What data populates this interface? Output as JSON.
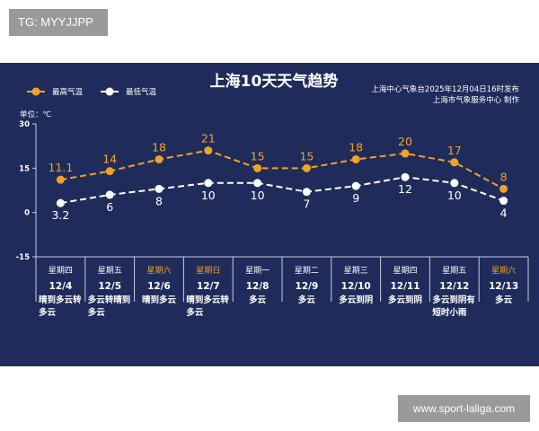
{
  "watermark_top": "TG: MYYJJPP",
  "watermark_bottom": "www.sport-laliga.com",
  "chart_data": {
    "type": "line",
    "title": "上海10天天气趋势",
    "subtitle_lines": [
      "上海中心气象台2025年12月04日16时发布",
      "上海市气象服务中心  制作"
    ],
    "unit_label": "单位：℃",
    "ylim": [
      -15,
      30
    ],
    "yticks": [
      30,
      15,
      0,
      -15
    ],
    "grid": false,
    "legend_placement": "top-left",
    "categories": [
      "12/4",
      "12/5",
      "12/6",
      "12/7",
      "12/8",
      "12/9",
      "12/10",
      "12/11",
      "12/12",
      "12/13"
    ],
    "weekdays": [
      "星期四",
      "星期五",
      "星期六",
      "星期日",
      "星期一",
      "星期二",
      "星期三",
      "星期四",
      "星期五",
      "星期六"
    ],
    "weekend": [
      false,
      false,
      true,
      true,
      false,
      false,
      false,
      false,
      false,
      true
    ],
    "weather": [
      [
        "晴到多云转",
        "多云"
      ],
      [
        "多云转晴到",
        "多云"
      ],
      [
        "晴到多云"
      ],
      [
        "晴到多云转",
        "多云"
      ],
      [
        "多云"
      ],
      [
        "多云"
      ],
      [
        "多云到阴"
      ],
      [
        "多云到阴"
      ],
      [
        "多云到阴有",
        "短时小雨"
      ],
      [
        "多云"
      ]
    ],
    "series": [
      {
        "name": "最高气温",
        "color": "#f0a326",
        "values": [
          11.1,
          14,
          18,
          21,
          15,
          15,
          18,
          20,
          17,
          8
        ],
        "labels": [
          "11.1",
          "14",
          "18",
          "21",
          "15",
          "15",
          "18",
          "20",
          "17",
          "8"
        ]
      },
      {
        "name": "最低气温",
        "color": "#ffffff",
        "values": [
          3.2,
          6,
          8,
          10,
          10,
          7,
          9,
          12,
          10,
          4
        ],
        "labels": [
          "3.2",
          "6",
          "8",
          "10",
          "10",
          "7",
          "9",
          "12",
          "10",
          "4"
        ]
      }
    ],
    "colors": {
      "background": "#1f2c5b",
      "weekend_text": "#f0a326",
      "text": "#ffffff"
    }
  }
}
